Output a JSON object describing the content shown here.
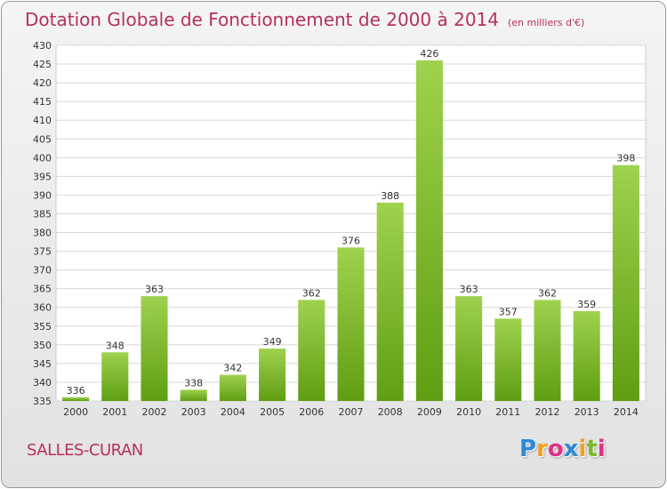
{
  "header": {
    "title": "Dotation Globale de Fonctionnement de 2000 à 2014",
    "subtitle": "(en milliers d'€)"
  },
  "footer": {
    "commune": "SALLES-CURAN",
    "brand_letters": [
      "P",
      "r",
      "o",
      "x",
      "i",
      "t",
      "i"
    ],
    "brand_colors": [
      "#2e8ad6",
      "#f0a020",
      "#e0308a",
      "#2e8ad6",
      "#f0a020",
      "#7ab828",
      "#e0308a"
    ]
  },
  "chart_data": {
    "type": "bar",
    "title": "Dotation Globale de Fonctionnement de 2000 à 2014",
    "subtitle": "(en milliers d'€)",
    "xlabel": "",
    "ylabel": "",
    "categories": [
      "2000",
      "2001",
      "2002",
      "2003",
      "2004",
      "2005",
      "2006",
      "2007",
      "2008",
      "2009",
      "2010",
      "2011",
      "2012",
      "2013",
      "2014"
    ],
    "values": [
      336,
      348,
      363,
      338,
      342,
      349,
      362,
      376,
      388,
      426,
      363,
      357,
      362,
      359,
      398
    ],
    "ylim": [
      335,
      430
    ],
    "yticks": [
      335,
      340,
      345,
      350,
      355,
      360,
      365,
      370,
      375,
      380,
      385,
      390,
      395,
      400,
      405,
      410,
      415,
      420,
      425,
      430
    ],
    "grid": true,
    "bar_color_top": "#9fd24e",
    "bar_color_bottom": "#5f9e12"
  }
}
